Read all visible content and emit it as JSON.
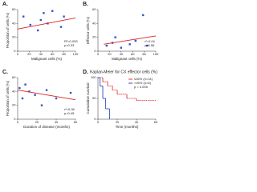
{
  "chart_data": [
    {
      "type": "scatter",
      "label": "A.",
      "xlabel": "Malignant cells (%)",
      "ylabel": "Proportion of cells (%)",
      "x": [
        10,
        22,
        35,
        40,
        45,
        52,
        60,
        75,
        80
      ],
      "y": [
        50,
        38,
        30,
        45,
        55,
        40,
        58,
        35,
        50
      ],
      "color": "#3355cc",
      "fit": {
        "x": [
          0,
          100
        ],
        "y": [
          32,
          48
        ],
        "color": "#dd2222"
      },
      "annotation": [
        "R²=0.093",
        "p=0.33"
      ],
      "xlim": [
        0,
        100
      ],
      "xticks": [
        0,
        20,
        40,
        60,
        80,
        100
      ],
      "ylim": [
        0,
        60
      ],
      "yticks": [
        0,
        20,
        40,
        60
      ]
    },
    {
      "type": "scatter",
      "label": "B.",
      "xlabel": "Malignant cells (%)",
      "ylabel": "Effector cells (%)",
      "x": [
        15,
        25,
        30,
        40,
        55,
        65,
        78,
        85
      ],
      "y": [
        8,
        12,
        20,
        5,
        10,
        15,
        52,
        8
      ],
      "color": "#3355cc",
      "fit": {
        "x": [
          10,
          100
        ],
        "y": [
          10,
          22
        ],
        "color": "#dd2222"
      },
      "annotation": [
        "r²=0.04",
        "p=0.56"
      ],
      "xlim": [
        0,
        100
      ],
      "xticks": [
        0,
        20,
        40,
        60,
        80,
        100
      ],
      "ylim": [
        0,
        60
      ],
      "yticks": [
        0,
        20,
        40,
        60
      ]
    },
    {
      "type": "scatter",
      "label": "C.",
      "xlabel": "Duration of disease (months)",
      "ylabel": "Proportion of cells (%)",
      "x": [
        2,
        5,
        8,
        12,
        18,
        25,
        30,
        40,
        55
      ],
      "y": [
        45,
        30,
        50,
        40,
        35,
        20,
        42,
        30,
        38
      ],
      "color": "#3355cc",
      "fit": {
        "x": [
          0,
          60
        ],
        "y": [
          42,
          28
        ],
        "color": "#dd2222"
      },
      "annotation": [
        "r²=0.06",
        "p=0.45"
      ],
      "xlim": [
        0,
        60
      ],
      "xticks": [
        0,
        20,
        40,
        60
      ],
      "ylim": [
        0,
        60
      ],
      "yticks": [
        0,
        20,
        40,
        60
      ]
    },
    {
      "type": "step",
      "label": "D.",
      "title": "Kaplan-Meier for CX effector cells (%)",
      "xlabel": "Time (months)",
      "ylabel": "Cumulative survival",
      "series": [
        {
          "name": "≤26% (n=14)",
          "color": "#dd2222",
          "x": [
            0,
            5,
            10,
            15,
            20,
            30,
            40,
            60
          ],
          "y": [
            100,
            90,
            80,
            70,
            60,
            50,
            45,
            45
          ]
        },
        {
          "name": ">26% (n=6)",
          "color": "#2233bb",
          "x": [
            0,
            2,
            5,
            8,
            12
          ],
          "y": [
            100,
            80,
            50,
            25,
            0
          ]
        }
      ],
      "annotation": [
        "p = 0.005"
      ],
      "xlim": [
        0,
        60
      ],
      "xticks": [
        0,
        20,
        40,
        60
      ],
      "ylim": [
        0,
        100
      ],
      "yticks": [
        0,
        50,
        100
      ]
    }
  ]
}
